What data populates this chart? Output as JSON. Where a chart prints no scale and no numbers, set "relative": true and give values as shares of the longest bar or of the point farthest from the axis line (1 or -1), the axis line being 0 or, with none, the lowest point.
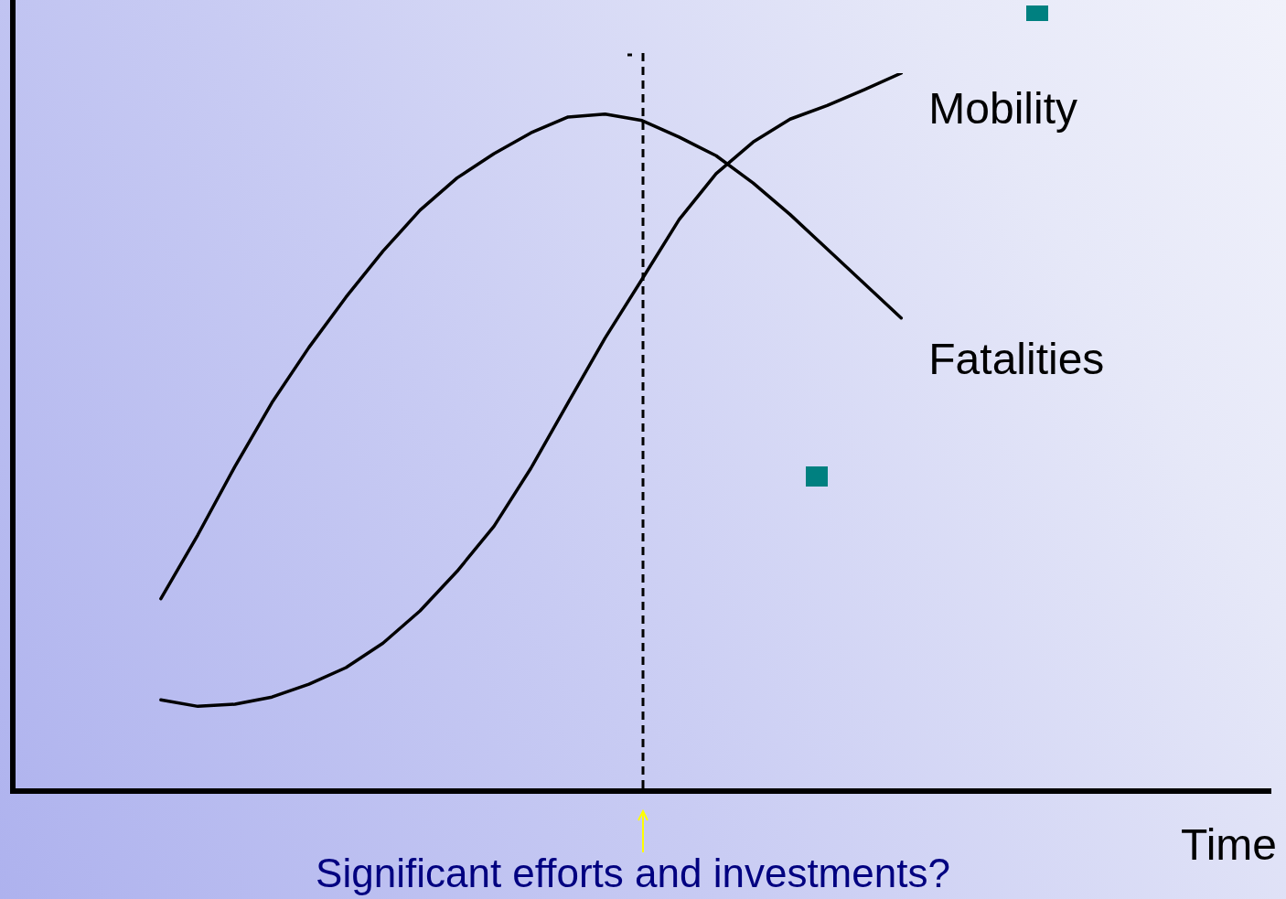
{
  "chart_data": {
    "type": "line",
    "relative": true,
    "xlabel": "Time",
    "tick_labels": false,
    "marker": "none",
    "line_style": "solid",
    "categories": [
      null,
      null,
      null,
      null,
      null,
      null,
      null,
      null,
      null,
      null,
      null,
      null,
      null,
      null,
      null,
      null,
      null,
      null,
      null,
      null,
      null,
      null,
      null,
      null,
      null,
      null,
      null,
      null,
      null,
      null,
      null,
      null,
      null,
      null,
      null
    ],
    "series": [
      {
        "name": "Mobility",
        "color": "#000000",
        "values": [
          null,
          null,
          null,
          null,
          0.127,
          0.118,
          0.121,
          0.131,
          0.149,
          0.172,
          0.206,
          0.251,
          0.306,
          0.369,
          0.45,
          0.541,
          0.631,
          0.713,
          0.796,
          0.86,
          0.904,
          0.936,
          0.955,
          0.977,
          1,
          null,
          null,
          null,
          null,
          null,
          null,
          null,
          null,
          null,
          null
        ]
      },
      {
        "name": "Fatalities",
        "color": "#000000",
        "values": [
          null,
          null,
          null,
          null,
          0.268,
          0.357,
          0.452,
          0.541,
          0.618,
          0.688,
          0.752,
          0.809,
          0.854,
          0.888,
          0.917,
          0.939,
          0.943,
          0.934,
          0.911,
          0.885,
          0.847,
          0.803,
          0.755,
          0.707,
          0.659,
          null,
          null,
          null,
          null,
          null,
          null,
          null,
          null,
          null,
          null
        ]
      }
    ],
    "annotations": [
      "Significant efforts and investments?"
    ]
  }
}
